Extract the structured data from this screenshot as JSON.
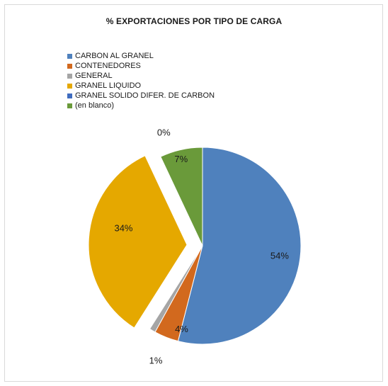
{
  "chart_data": {
    "type": "pie",
    "title": "% EXPORTACIONES POR TIPO DE CARGA",
    "categories": [
      "CARBON AL GRANEL",
      "CONTENEDORES",
      "GENERAL",
      "GRANEL LIQUIDO",
      "GRANEL SOLIDO DIFER. DE CARBON",
      "(en blanco)"
    ],
    "values": [
      54,
      4,
      1,
      34,
      0,
      7
    ],
    "data_labels": [
      "54%",
      "4%",
      "1%",
      "34%",
      "0%",
      "7%"
    ],
    "colors": [
      "#4f81bd",
      "#d2691e",
      "#a5a5a5",
      "#e5a800",
      "#3f6cbf",
      "#6a9a3a"
    ],
    "exploded": [
      false,
      false,
      false,
      true,
      false,
      false
    ],
    "legend_position": "top-left"
  }
}
